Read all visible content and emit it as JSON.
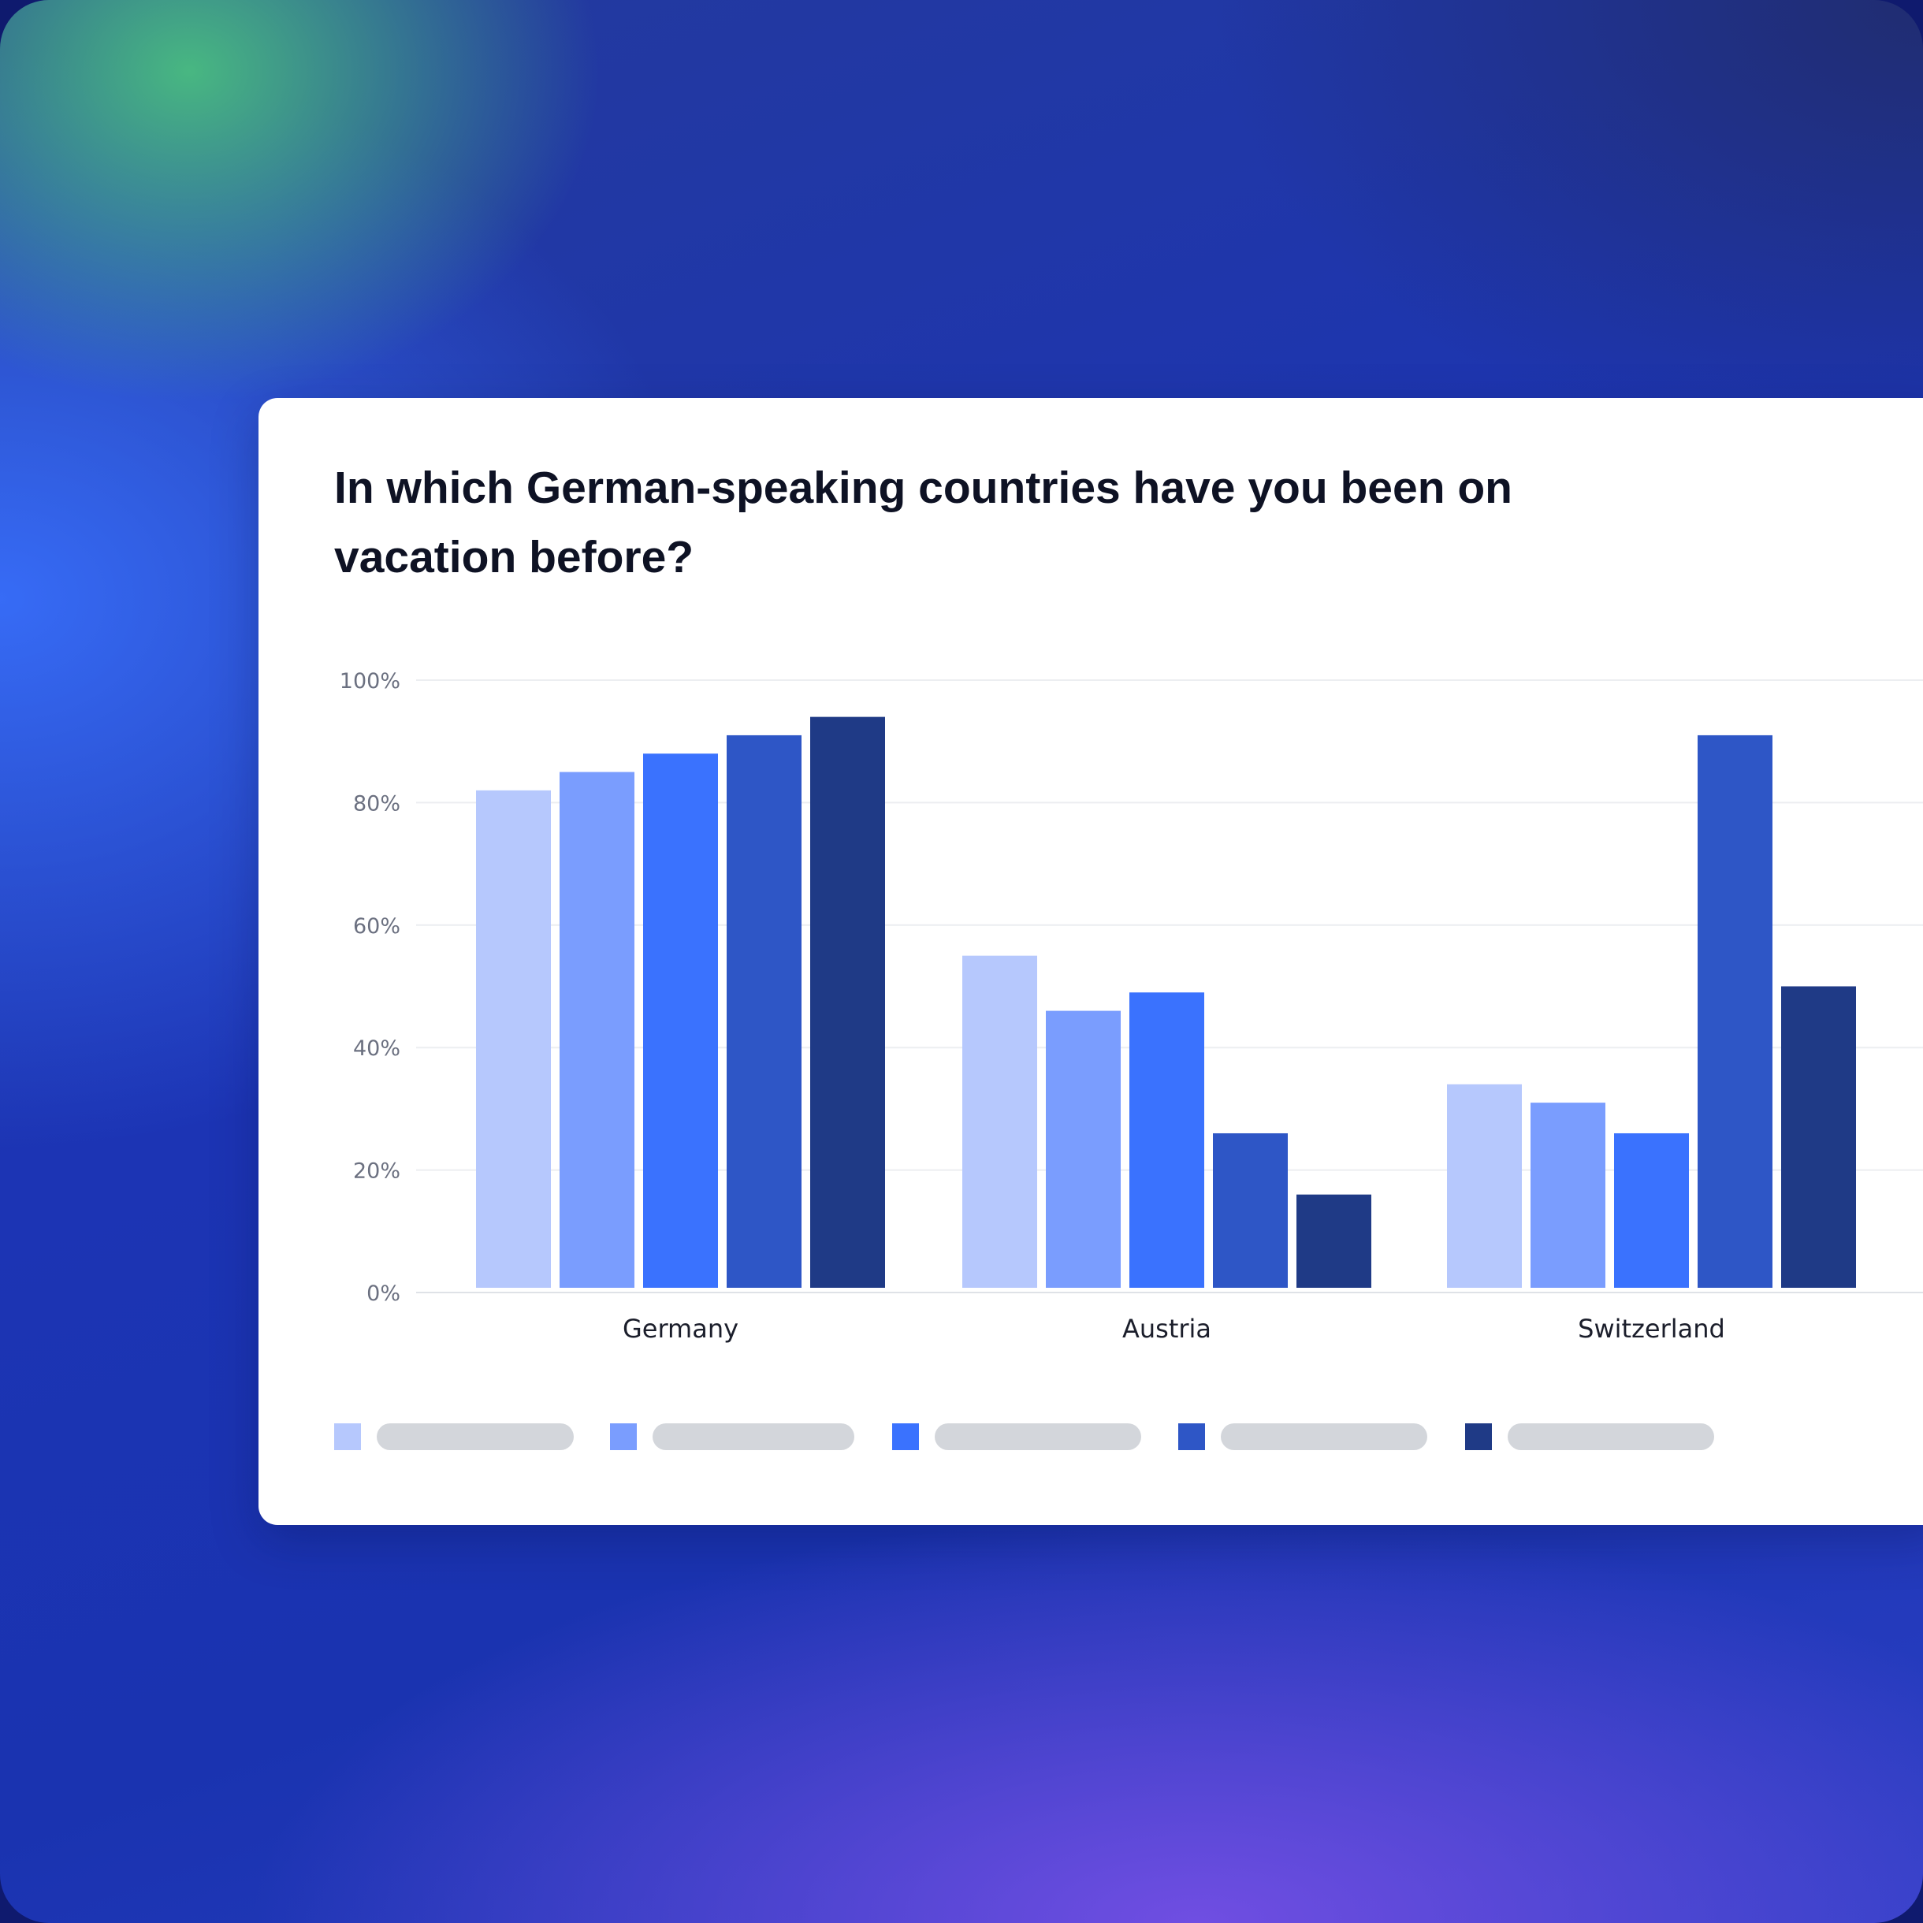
{
  "chart_data": {
    "type": "bar",
    "title": "In which German-speaking countries have you been on vacation before?",
    "categories": [
      "Germany",
      "Austria",
      "Switzerland"
    ],
    "series": [
      {
        "color": "#b6c8fd",
        "values": [
          82,
          55,
          34
        ]
      },
      {
        "color": "#7a9dfe",
        "values": [
          85,
          46,
          31
        ]
      },
      {
        "color": "#3a72fe",
        "values": [
          88,
          49,
          26
        ]
      },
      {
        "color": "#2e56c6",
        "values": [
          91,
          26,
          91
        ]
      },
      {
        "color": "#1f3a86",
        "values": [
          94,
          16,
          50
        ]
      }
    ],
    "ylim": [
      0,
      100
    ],
    "yticks": [
      "0%",
      "20%",
      "40%",
      "60%",
      "80%",
      "100%"
    ],
    "grid": true,
    "legend": "bottom-left"
  }
}
